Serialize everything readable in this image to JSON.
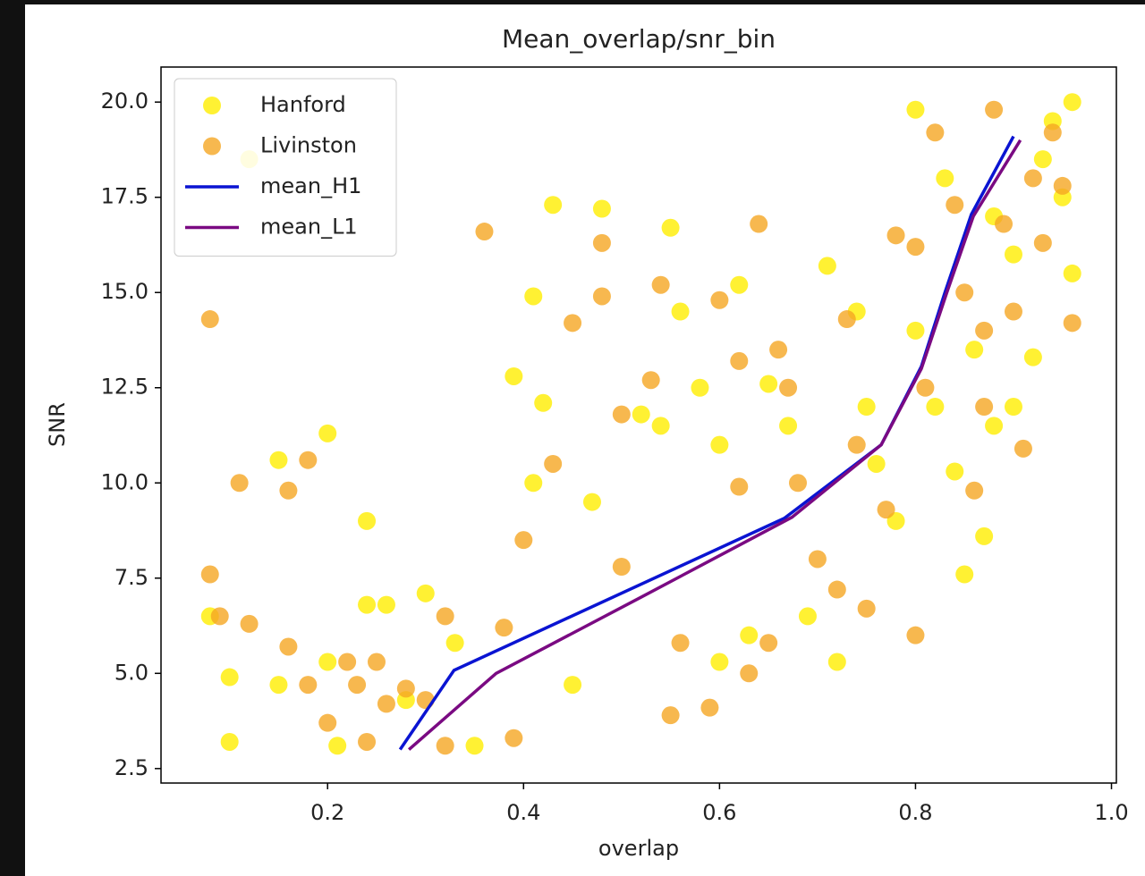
{
  "chart_data": {
    "type": "scatter",
    "title": "Mean_overlap/snr_bin",
    "x_label": "overlap",
    "y_label": "SNR",
    "xlim": [
      0.03,
      1.005
    ],
    "ylim": [
      2.12,
      20.92
    ],
    "xticks": [
      0.2,
      0.4,
      0.6,
      0.8,
      {
        "value": 1.0,
        "label": "1.0"
      }
    ],
    "yticks": [
      2.5,
      {
        "value": 5.0,
        "label": "5.0"
      },
      7.5,
      {
        "value": 10.0,
        "label": "10.0"
      },
      12.5,
      {
        "value": 15.0,
        "label": "15.0"
      },
      17.5,
      {
        "value": 20.0,
        "label": "20.0"
      }
    ],
    "legend": "upper left",
    "series": [
      {
        "name": "Hanford",
        "type": "scatter",
        "color": "#ffee00",
        "x": [
          0.08,
          0.1,
          0.1,
          0.12,
          0.15,
          0.15,
          0.2,
          0.2,
          0.21,
          0.24,
          0.24,
          0.26,
          0.28,
          0.3,
          0.33,
          0.35,
          0.39,
          0.41,
          0.42,
          0.41,
          0.43,
          0.47,
          0.48,
          0.45,
          0.52,
          0.55,
          0.54,
          0.56,
          0.58,
          0.6,
          0.6,
          0.62,
          0.63,
          0.65,
          0.67,
          0.69,
          0.71,
          0.72,
          0.74,
          0.75,
          0.76,
          0.78,
          0.8,
          0.8,
          0.82,
          0.83,
          0.85,
          0.87,
          0.88,
          0.9,
          0.92,
          0.93,
          0.95,
          0.96,
          0.96,
          0.94,
          0.88,
          0.86,
          0.84,
          0.9
        ],
        "values": [
          6.5,
          3.2,
          4.9,
          18.5,
          10.6,
          4.7,
          11.3,
          5.3,
          3.1,
          9.0,
          6.8,
          6.8,
          4.3,
          7.1,
          5.8,
          3.1,
          12.8,
          14.9,
          12.1,
          10.0,
          17.3,
          9.5,
          17.2,
          4.7,
          11.8,
          16.7,
          11.5,
          14.5,
          12.5,
          11.0,
          5.3,
          15.2,
          6.0,
          12.6,
          11.5,
          6.5,
          15.7,
          5.3,
          14.5,
          12.0,
          10.5,
          9.0,
          19.8,
          14.0,
          12.0,
          18.0,
          7.6,
          8.6,
          11.5,
          16.0,
          13.3,
          18.5,
          17.5,
          20.0,
          15.5,
          19.5,
          17.0,
          13.5,
          10.3,
          12.0
        ]
      },
      {
        "name": "Livinston",
        "type": "scatter",
        "color": "#f5a623",
        "x": [
          0.08,
          0.08,
          0.09,
          0.11,
          0.12,
          0.16,
          0.16,
          0.18,
          0.18,
          0.2,
          0.22,
          0.23,
          0.24,
          0.25,
          0.26,
          0.28,
          0.3,
          0.32,
          0.32,
          0.36,
          0.38,
          0.39,
          0.4,
          0.43,
          0.45,
          0.48,
          0.48,
          0.5,
          0.5,
          0.54,
          0.53,
          0.55,
          0.56,
          0.59,
          0.6,
          0.62,
          0.62,
          0.63,
          0.64,
          0.65,
          0.66,
          0.67,
          0.68,
          0.7,
          0.72,
          0.73,
          0.74,
          0.75,
          0.77,
          0.78,
          0.8,
          0.8,
          0.81,
          0.82,
          0.84,
          0.85,
          0.86,
          0.87,
          0.88,
          0.9,
          0.91,
          0.92,
          0.93,
          0.94,
          0.96,
          0.95,
          0.89,
          0.87
        ],
        "values": [
          14.3,
          7.6,
          6.5,
          10.0,
          6.3,
          9.8,
          5.7,
          10.6,
          4.7,
          3.7,
          5.3,
          4.7,
          3.2,
          5.3,
          4.2,
          4.6,
          4.3,
          6.5,
          3.1,
          16.6,
          6.2,
          3.3,
          8.5,
          10.5,
          14.2,
          16.3,
          14.9,
          11.8,
          7.8,
          15.2,
          12.7,
          3.9,
          5.8,
          4.1,
          14.8,
          13.2,
          9.9,
          5.0,
          16.8,
          5.8,
          13.5,
          12.5,
          10.0,
          8.0,
          7.2,
          14.3,
          11.0,
          6.7,
          9.3,
          16.5,
          6.0,
          16.2,
          12.5,
          19.2,
          17.3,
          15.0,
          9.8,
          12.0,
          19.8,
          14.5,
          10.9,
          18.0,
          16.3,
          19.2,
          14.2,
          17.8,
          16.8,
          14.0
        ]
      },
      {
        "name": "mean_H1",
        "type": "line",
        "color": "#0a14d2",
        "x": [
          0.274,
          0.329,
          0.666,
          0.765,
          0.806,
          0.83,
          0.857,
          0.9
        ],
        "values": [
          3.0,
          5.08,
          9.07,
          11.0,
          13.06,
          15.0,
          17.05,
          19.1
        ]
      },
      {
        "name": "mean_L1",
        "type": "line",
        "color": "#7a0a82",
        "x": [
          0.283,
          0.372,
          0.52,
          0.674,
          0.765,
          0.806,
          0.832,
          0.859,
          0.907
        ],
        "values": [
          3.0,
          5.0,
          7.0,
          9.1,
          11.0,
          13.0,
          15.0,
          17.0,
          19.0
        ]
      }
    ]
  }
}
